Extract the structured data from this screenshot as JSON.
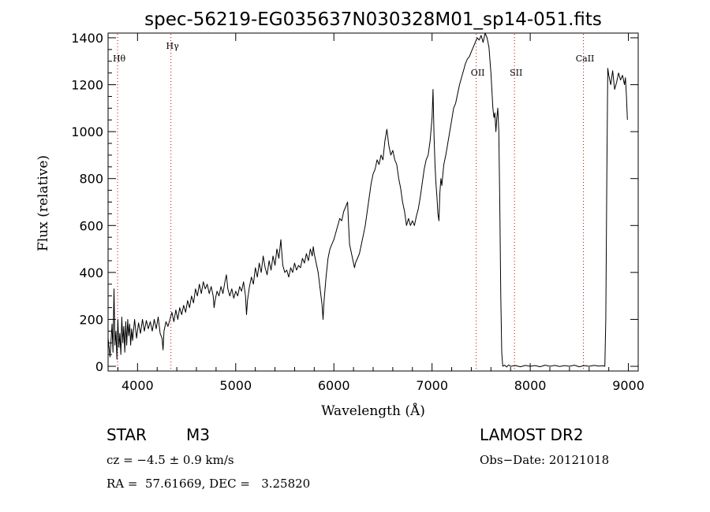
{
  "chart_data": {
    "type": "line",
    "title": "spec-56219-EG035637N030328M01_sp14-051.fits",
    "xlabel": "Wavelength (Å)",
    "ylabel": "Flux (relative)",
    "xlim": [
      3700,
      9100
    ],
    "ylim": [
      -20,
      1420
    ],
    "x_ticks": [
      4000,
      5000,
      6000,
      7000,
      8000,
      9000
    ],
    "y_ticks": [
      0,
      200,
      400,
      600,
      800,
      1000,
      1200,
      1400
    ],
    "grid": false,
    "line_color": "#000000",
    "marker_color": "#cc0000",
    "spectral_lines": [
      {
        "name": "Hθ",
        "x": 3797
      },
      {
        "name": "Hγ",
        "x": 4340
      },
      {
        "name": "OII",
        "x": 7450
      },
      {
        "name": "SII",
        "x": 7840
      },
      {
        "name": "CaII",
        "x": 8542
      }
    ],
    "series": [
      {
        "values": [
          [
            3700,
            120
          ],
          [
            3720,
            40
          ],
          [
            3740,
            180
          ],
          [
            3750,
            60
          ],
          [
            3760,
            330
          ],
          [
            3770,
            90
          ],
          [
            3780,
            150
          ],
          [
            3790,
            30
          ],
          [
            3800,
            200
          ],
          [
            3810,
            80
          ],
          [
            3820,
            140
          ],
          [
            3830,
            50
          ],
          [
            3840,
            210
          ],
          [
            3850,
            100
          ],
          [
            3860,
            170
          ],
          [
            3870,
            60
          ],
          [
            3880,
            190
          ],
          [
            3890,
            90
          ],
          [
            3900,
            200
          ],
          [
            3910,
            130
          ],
          [
            3920,
            180
          ],
          [
            3930,
            90
          ],
          [
            3940,
            160
          ],
          [
            3950,
            110
          ],
          [
            3970,
            200
          ],
          [
            3990,
            120
          ],
          [
            4010,
            185
          ],
          [
            4030,
            140
          ],
          [
            4050,
            200
          ],
          [
            4070,
            150
          ],
          [
            4090,
            195
          ],
          [
            4110,
            160
          ],
          [
            4130,
            190
          ],
          [
            4150,
            150
          ],
          [
            4170,
            200
          ],
          [
            4190,
            160
          ],
          [
            4210,
            210
          ],
          [
            4230,
            140
          ],
          [
            4250,
            120
          ],
          [
            4260,
            70
          ],
          [
            4270,
            150
          ],
          [
            4290,
            190
          ],
          [
            4310,
            170
          ],
          [
            4330,
            200
          ],
          [
            4350,
            230
          ],
          [
            4370,
            190
          ],
          [
            4390,
            240
          ],
          [
            4410,
            200
          ],
          [
            4430,
            250
          ],
          [
            4450,
            220
          ],
          [
            4470,
            260
          ],
          [
            4490,
            230
          ],
          [
            4510,
            280
          ],
          [
            4530,
            250
          ],
          [
            4550,
            300
          ],
          [
            4570,
            270
          ],
          [
            4590,
            330
          ],
          [
            4610,
            300
          ],
          [
            4630,
            350
          ],
          [
            4650,
            310
          ],
          [
            4670,
            360
          ],
          [
            4690,
            330
          ],
          [
            4710,
            350
          ],
          [
            4730,
            310
          ],
          [
            4750,
            340
          ],
          [
            4770,
            300
          ],
          [
            4780,
            250
          ],
          [
            4790,
            280
          ],
          [
            4810,
            320
          ],
          [
            4830,
            300
          ],
          [
            4850,
            340
          ],
          [
            4870,
            310
          ],
          [
            4890,
            360
          ],
          [
            4905,
            390
          ],
          [
            4920,
            330
          ],
          [
            4940,
            300
          ],
          [
            4960,
            330
          ],
          [
            4980,
            290
          ],
          [
            5000,
            320
          ],
          [
            5020,
            300
          ],
          [
            5040,
            340
          ],
          [
            5060,
            320
          ],
          [
            5080,
            360
          ],
          [
            5100,
            300
          ],
          [
            5110,
            220
          ],
          [
            5120,
            280
          ],
          [
            5140,
            340
          ],
          [
            5160,
            380
          ],
          [
            5180,
            350
          ],
          [
            5200,
            420
          ],
          [
            5220,
            380
          ],
          [
            5240,
            440
          ],
          [
            5260,
            400
          ],
          [
            5280,
            470
          ],
          [
            5300,
            420
          ],
          [
            5320,
            390
          ],
          [
            5340,
            450
          ],
          [
            5360,
            410
          ],
          [
            5380,
            470
          ],
          [
            5400,
            430
          ],
          [
            5420,
            500
          ],
          [
            5440,
            460
          ],
          [
            5460,
            540
          ],
          [
            5470,
            480
          ],
          [
            5480,
            430
          ],
          [
            5500,
            400
          ],
          [
            5520,
            410
          ],
          [
            5540,
            380
          ],
          [
            5560,
            420
          ],
          [
            5580,
            400
          ],
          [
            5600,
            440
          ],
          [
            5620,
            410
          ],
          [
            5640,
            430
          ],
          [
            5660,
            420
          ],
          [
            5680,
            460
          ],
          [
            5700,
            440
          ],
          [
            5720,
            480
          ],
          [
            5740,
            450
          ],
          [
            5760,
            500
          ],
          [
            5780,
            470
          ],
          [
            5790,
            510
          ],
          [
            5800,
            480
          ],
          [
            5820,
            440
          ],
          [
            5840,
            400
          ],
          [
            5860,
            330
          ],
          [
            5880,
            260
          ],
          [
            5890,
            200
          ],
          [
            5900,
            280
          ],
          [
            5920,
            380
          ],
          [
            5940,
            460
          ],
          [
            5960,
            500
          ],
          [
            5980,
            520
          ],
          [
            6000,
            540
          ],
          [
            6020,
            570
          ],
          [
            6040,
            600
          ],
          [
            6060,
            630
          ],
          [
            6080,
            620
          ],
          [
            6100,
            660
          ],
          [
            6120,
            680
          ],
          [
            6140,
            700
          ],
          [
            6150,
            600
          ],
          [
            6160,
            520
          ],
          [
            6180,
            480
          ],
          [
            6200,
            440
          ],
          [
            6210,
            420
          ],
          [
            6220,
            440
          ],
          [
            6240,
            460
          ],
          [
            6260,
            480
          ],
          [
            6280,
            520
          ],
          [
            6300,
            560
          ],
          [
            6320,
            600
          ],
          [
            6340,
            660
          ],
          [
            6360,
            720
          ],
          [
            6380,
            780
          ],
          [
            6400,
            820
          ],
          [
            6420,
            840
          ],
          [
            6440,
            880
          ],
          [
            6460,
            860
          ],
          [
            6480,
            900
          ],
          [
            6500,
            880
          ],
          [
            6520,
            960
          ],
          [
            6540,
            1010
          ],
          [
            6560,
            940
          ],
          [
            6580,
            900
          ],
          [
            6600,
            920
          ],
          [
            6620,
            880
          ],
          [
            6640,
            860
          ],
          [
            6660,
            800
          ],
          [
            6680,
            760
          ],
          [
            6700,
            700
          ],
          [
            6720,
            660
          ],
          [
            6740,
            600
          ],
          [
            6760,
            630
          ],
          [
            6780,
            600
          ],
          [
            6800,
            620
          ],
          [
            6820,
            600
          ],
          [
            6840,
            640
          ],
          [
            6860,
            670
          ],
          [
            6880,
            720
          ],
          [
            6900,
            780
          ],
          [
            6920,
            840
          ],
          [
            6940,
            880
          ],
          [
            6960,
            900
          ],
          [
            6980,
            960
          ],
          [
            7000,
            1060
          ],
          [
            7010,
            1180
          ],
          [
            7020,
            980
          ],
          [
            7030,
            860
          ],
          [
            7040,
            780
          ],
          [
            7050,
            720
          ],
          [
            7060,
            650
          ],
          [
            7070,
            620
          ],
          [
            7080,
            740
          ],
          [
            7090,
            800
          ],
          [
            7100,
            770
          ],
          [
            7110,
            820
          ],
          [
            7120,
            860
          ],
          [
            7140,
            900
          ],
          [
            7160,
            950
          ],
          [
            7180,
            1000
          ],
          [
            7200,
            1050
          ],
          [
            7220,
            1100
          ],
          [
            7240,
            1120
          ],
          [
            7260,
            1160
          ],
          [
            7280,
            1200
          ],
          [
            7300,
            1230
          ],
          [
            7320,
            1260
          ],
          [
            7340,
            1290
          ],
          [
            7360,
            1310
          ],
          [
            7380,
            1320
          ],
          [
            7400,
            1340
          ],
          [
            7420,
            1360
          ],
          [
            7440,
            1380
          ],
          [
            7460,
            1400
          ],
          [
            7480,
            1390
          ],
          [
            7500,
            1410
          ],
          [
            7520,
            1380
          ],
          [
            7540,
            1420
          ],
          [
            7560,
            1400
          ],
          [
            7580,
            1360
          ],
          [
            7600,
            1250
          ],
          [
            7620,
            1100
          ],
          [
            7630,
            1060
          ],
          [
            7640,
            1080
          ],
          [
            7650,
            1000
          ],
          [
            7660,
            1060
          ],
          [
            7670,
            1100
          ],
          [
            7680,
            1000
          ],
          [
            7690,
            700
          ],
          [
            7700,
            300
          ],
          [
            7710,
            60
          ],
          [
            7720,
            0
          ],
          [
            7740,
            5
          ],
          [
            7760,
            -3
          ],
          [
            7780,
            6
          ],
          [
            7800,
            0
          ],
          [
            7850,
            3
          ],
          [
            7900,
            -2
          ],
          [
            7950,
            4
          ],
          [
            8000,
            0
          ],
          [
            8050,
            3
          ],
          [
            8100,
            -2
          ],
          [
            8150,
            5
          ],
          [
            8200,
            0
          ],
          [
            8250,
            4
          ],
          [
            8300,
            -1
          ],
          [
            8350,
            3
          ],
          [
            8400,
            0
          ],
          [
            8450,
            5
          ],
          [
            8500,
            -2
          ],
          [
            8550,
            3
          ],
          [
            8600,
            0
          ],
          [
            8650,
            4
          ],
          [
            8700,
            1
          ],
          [
            8740,
            2
          ],
          [
            8760,
            0
          ],
          [
            8770,
            200
          ],
          [
            8780,
            800
          ],
          [
            8790,
            1270
          ],
          [
            8800,
            1240
          ],
          [
            8820,
            1200
          ],
          [
            8840,
            1260
          ],
          [
            8860,
            1180
          ],
          [
            8880,
            1210
          ],
          [
            8900,
            1250
          ],
          [
            8920,
            1220
          ],
          [
            8940,
            1240
          ],
          [
            8960,
            1200
          ],
          [
            8970,
            1230
          ],
          [
            8980,
            1150
          ],
          [
            8990,
            1050
          ]
        ]
      }
    ]
  },
  "info": {
    "object_class": "STAR",
    "subclass": "M3",
    "survey": "LAMOST DR2",
    "cz": "cz = −4.5 ± 0.9 km/s",
    "obs_date": "Obs−Date: 20121018",
    "coords": "RA =  57.61669, DEC =   3.25820"
  }
}
